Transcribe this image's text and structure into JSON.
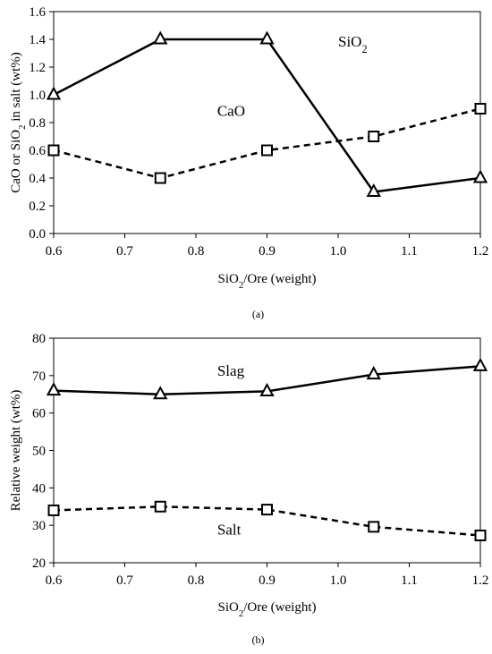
{
  "chart_data": [
    {
      "type": "line",
      "panel_label": "(a)",
      "title": "",
      "xlabel_parts": [
        "SiO",
        "2",
        "/Ore (weight)"
      ],
      "ylabel_parts": [
        "CaO or SiO",
        "2",
        " in salt (wt%)"
      ],
      "xlim": [
        0.6,
        1.2
      ],
      "ylim": [
        0,
        1.6
      ],
      "xticks": [
        "0.6",
        "0.7",
        "0.8",
        "0.9",
        "1.0",
        "1.1",
        "1.2"
      ],
      "yticks": [
        "0.0",
        "0.2",
        "0.4",
        "0.6",
        "0.8",
        "1.0",
        "1.2",
        "1.4",
        "1.6"
      ],
      "grid": false,
      "legend": "none",
      "series": [
        {
          "label_parts": [
            "SiO",
            "2"
          ],
          "label_at": [
            1.0,
            1.35
          ],
          "marker": "triangle",
          "dash": "solid",
          "x": [
            0.6,
            0.75,
            0.9,
            1.05,
            1.2
          ],
          "y": [
            1.0,
            1.4,
            1.4,
            0.3,
            0.4
          ]
        },
        {
          "label_parts": [
            "CaO",
            "",
            ""
          ],
          "label_at": [
            0.83,
            0.85
          ],
          "marker": "square",
          "dash": "dashed",
          "x": [
            0.6,
            0.75,
            0.9,
            1.05,
            1.2
          ],
          "y": [
            0.6,
            0.4,
            0.6,
            0.7,
            0.9
          ]
        }
      ]
    },
    {
      "type": "line",
      "panel_label": "(b)",
      "title": "",
      "xlabel_parts": [
        "SiO",
        "2",
        "/Ore (weight)"
      ],
      "ylabel_parts": [
        "Relative weight (wt%)",
        "",
        ""
      ],
      "xlim": [
        0.6,
        1.2
      ],
      "ylim": [
        20,
        80
      ],
      "xticks": [
        "0.6",
        "0.7",
        "0.8",
        "0.9",
        "1.0",
        "1.1",
        "1.2"
      ],
      "yticks": [
        "20",
        "30",
        "40",
        "50",
        "60",
        "70",
        "80"
      ],
      "grid": false,
      "legend": "none",
      "series": [
        {
          "label_parts": [
            "Slag",
            "",
            ""
          ],
          "label_at": [
            0.83,
            70
          ],
          "marker": "triangle",
          "dash": "solid",
          "x": [
            0.6,
            0.75,
            0.9,
            1.05,
            1.2
          ],
          "y": [
            66,
            65,
            65.8,
            70.3,
            72.5
          ]
        },
        {
          "label_parts": [
            "Salt",
            "",
            ""
          ],
          "label_at": [
            0.83,
            27.5
          ],
          "marker": "square",
          "dash": "dashed",
          "x": [
            0.6,
            0.75,
            0.9,
            1.05,
            1.2
          ],
          "y": [
            34,
            35,
            34.2,
            29.6,
            27.3
          ]
        }
      ]
    }
  ]
}
